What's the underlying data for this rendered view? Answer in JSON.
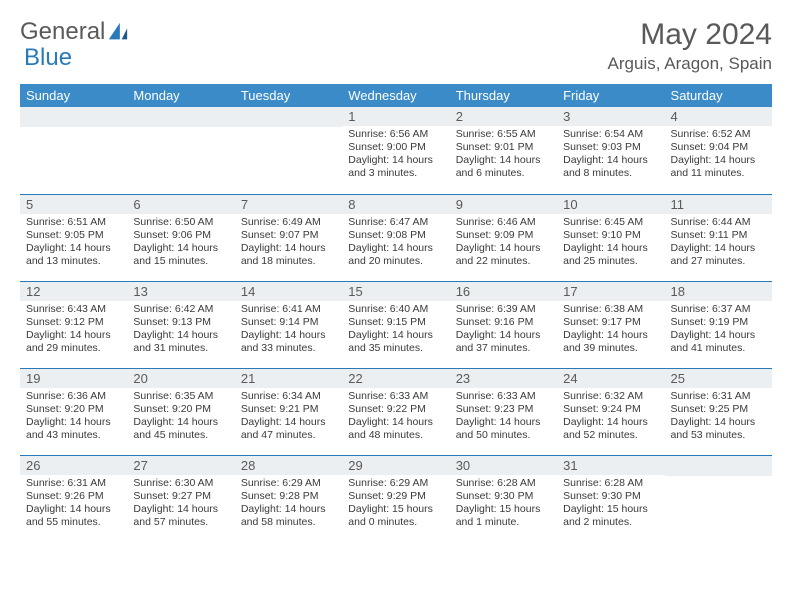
{
  "brand": {
    "text1": "General",
    "text2": "Blue"
  },
  "title": "May 2024",
  "location": "Arguis, Aragon, Spain",
  "colors": {
    "header_bg": "#3b8bc9",
    "border": "#2a7ab9",
    "daynum_bg": "#eceff1",
    "text": "#595959"
  },
  "weekdays": [
    "Sunday",
    "Monday",
    "Tuesday",
    "Wednesday",
    "Thursday",
    "Friday",
    "Saturday"
  ],
  "weeks": [
    [
      {
        "n": "",
        "sr": "",
        "ss": "",
        "dl": ""
      },
      {
        "n": "",
        "sr": "",
        "ss": "",
        "dl": ""
      },
      {
        "n": "",
        "sr": "",
        "ss": "",
        "dl": ""
      },
      {
        "n": "1",
        "sr": "Sunrise: 6:56 AM",
        "ss": "Sunset: 9:00 PM",
        "dl": "Daylight: 14 hours and 3 minutes."
      },
      {
        "n": "2",
        "sr": "Sunrise: 6:55 AM",
        "ss": "Sunset: 9:01 PM",
        "dl": "Daylight: 14 hours and 6 minutes."
      },
      {
        "n": "3",
        "sr": "Sunrise: 6:54 AM",
        "ss": "Sunset: 9:03 PM",
        "dl": "Daylight: 14 hours and 8 minutes."
      },
      {
        "n": "4",
        "sr": "Sunrise: 6:52 AM",
        "ss": "Sunset: 9:04 PM",
        "dl": "Daylight: 14 hours and 11 minutes."
      }
    ],
    [
      {
        "n": "5",
        "sr": "Sunrise: 6:51 AM",
        "ss": "Sunset: 9:05 PM",
        "dl": "Daylight: 14 hours and 13 minutes."
      },
      {
        "n": "6",
        "sr": "Sunrise: 6:50 AM",
        "ss": "Sunset: 9:06 PM",
        "dl": "Daylight: 14 hours and 15 minutes."
      },
      {
        "n": "7",
        "sr": "Sunrise: 6:49 AM",
        "ss": "Sunset: 9:07 PM",
        "dl": "Daylight: 14 hours and 18 minutes."
      },
      {
        "n": "8",
        "sr": "Sunrise: 6:47 AM",
        "ss": "Sunset: 9:08 PM",
        "dl": "Daylight: 14 hours and 20 minutes."
      },
      {
        "n": "9",
        "sr": "Sunrise: 6:46 AM",
        "ss": "Sunset: 9:09 PM",
        "dl": "Daylight: 14 hours and 22 minutes."
      },
      {
        "n": "10",
        "sr": "Sunrise: 6:45 AM",
        "ss": "Sunset: 9:10 PM",
        "dl": "Daylight: 14 hours and 25 minutes."
      },
      {
        "n": "11",
        "sr": "Sunrise: 6:44 AM",
        "ss": "Sunset: 9:11 PM",
        "dl": "Daylight: 14 hours and 27 minutes."
      }
    ],
    [
      {
        "n": "12",
        "sr": "Sunrise: 6:43 AM",
        "ss": "Sunset: 9:12 PM",
        "dl": "Daylight: 14 hours and 29 minutes."
      },
      {
        "n": "13",
        "sr": "Sunrise: 6:42 AM",
        "ss": "Sunset: 9:13 PM",
        "dl": "Daylight: 14 hours and 31 minutes."
      },
      {
        "n": "14",
        "sr": "Sunrise: 6:41 AM",
        "ss": "Sunset: 9:14 PM",
        "dl": "Daylight: 14 hours and 33 minutes."
      },
      {
        "n": "15",
        "sr": "Sunrise: 6:40 AM",
        "ss": "Sunset: 9:15 PM",
        "dl": "Daylight: 14 hours and 35 minutes."
      },
      {
        "n": "16",
        "sr": "Sunrise: 6:39 AM",
        "ss": "Sunset: 9:16 PM",
        "dl": "Daylight: 14 hours and 37 minutes."
      },
      {
        "n": "17",
        "sr": "Sunrise: 6:38 AM",
        "ss": "Sunset: 9:17 PM",
        "dl": "Daylight: 14 hours and 39 minutes."
      },
      {
        "n": "18",
        "sr": "Sunrise: 6:37 AM",
        "ss": "Sunset: 9:19 PM",
        "dl": "Daylight: 14 hours and 41 minutes."
      }
    ],
    [
      {
        "n": "19",
        "sr": "Sunrise: 6:36 AM",
        "ss": "Sunset: 9:20 PM",
        "dl": "Daylight: 14 hours and 43 minutes."
      },
      {
        "n": "20",
        "sr": "Sunrise: 6:35 AM",
        "ss": "Sunset: 9:20 PM",
        "dl": "Daylight: 14 hours and 45 minutes."
      },
      {
        "n": "21",
        "sr": "Sunrise: 6:34 AM",
        "ss": "Sunset: 9:21 PM",
        "dl": "Daylight: 14 hours and 47 minutes."
      },
      {
        "n": "22",
        "sr": "Sunrise: 6:33 AM",
        "ss": "Sunset: 9:22 PM",
        "dl": "Daylight: 14 hours and 48 minutes."
      },
      {
        "n": "23",
        "sr": "Sunrise: 6:33 AM",
        "ss": "Sunset: 9:23 PM",
        "dl": "Daylight: 14 hours and 50 minutes."
      },
      {
        "n": "24",
        "sr": "Sunrise: 6:32 AM",
        "ss": "Sunset: 9:24 PM",
        "dl": "Daylight: 14 hours and 52 minutes."
      },
      {
        "n": "25",
        "sr": "Sunrise: 6:31 AM",
        "ss": "Sunset: 9:25 PM",
        "dl": "Daylight: 14 hours and 53 minutes."
      }
    ],
    [
      {
        "n": "26",
        "sr": "Sunrise: 6:31 AM",
        "ss": "Sunset: 9:26 PM",
        "dl": "Daylight: 14 hours and 55 minutes."
      },
      {
        "n": "27",
        "sr": "Sunrise: 6:30 AM",
        "ss": "Sunset: 9:27 PM",
        "dl": "Daylight: 14 hours and 57 minutes."
      },
      {
        "n": "28",
        "sr": "Sunrise: 6:29 AM",
        "ss": "Sunset: 9:28 PM",
        "dl": "Daylight: 14 hours and 58 minutes."
      },
      {
        "n": "29",
        "sr": "Sunrise: 6:29 AM",
        "ss": "Sunset: 9:29 PM",
        "dl": "Daylight: 15 hours and 0 minutes."
      },
      {
        "n": "30",
        "sr": "Sunrise: 6:28 AM",
        "ss": "Sunset: 9:30 PM",
        "dl": "Daylight: 15 hours and 1 minute."
      },
      {
        "n": "31",
        "sr": "Sunrise: 6:28 AM",
        "ss": "Sunset: 9:30 PM",
        "dl": "Daylight: 15 hours and 2 minutes."
      },
      {
        "n": "",
        "sr": "",
        "ss": "",
        "dl": ""
      }
    ]
  ]
}
